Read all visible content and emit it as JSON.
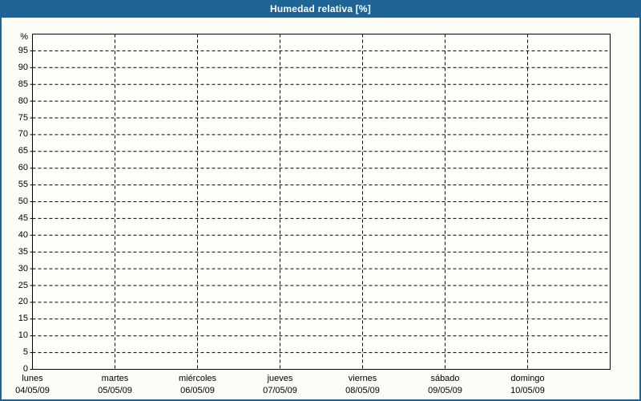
{
  "window": {
    "title": "Humedad relativa [%]"
  },
  "colors": {
    "title_bar": "#1e6496",
    "frame_border": "#1e6496",
    "background": "#fcfdf7",
    "plot_background": "#fdfefa",
    "grid_line": "#000000",
    "axis_text": "#000000",
    "title_text": "#ffffff"
  },
  "chart_data": {
    "type": "line",
    "title": "Humedad relativa [%]",
    "ylabel": "%",
    "xlabel": "",
    "ylim": [
      0,
      100
    ],
    "y_tick_step": 5,
    "y_ticks": [
      0,
      5,
      10,
      15,
      20,
      25,
      30,
      35,
      40,
      45,
      50,
      55,
      60,
      65,
      70,
      75,
      80,
      85,
      90,
      95
    ],
    "x_days": [
      {
        "name": "lunes",
        "date": "04/05/09"
      },
      {
        "name": "martes",
        "date": "05/05/09"
      },
      {
        "name": "miércoles",
        "date": "06/05/09"
      },
      {
        "name": "jueves",
        "date": "07/05/09"
      },
      {
        "name": "viernes",
        "date": "08/05/09"
      },
      {
        "name": "sábado",
        "date": "09/05/09"
      },
      {
        "name": "domingo",
        "date": "10/05/09"
      }
    ],
    "series": [],
    "grid": "dashed",
    "legend": "none"
  }
}
